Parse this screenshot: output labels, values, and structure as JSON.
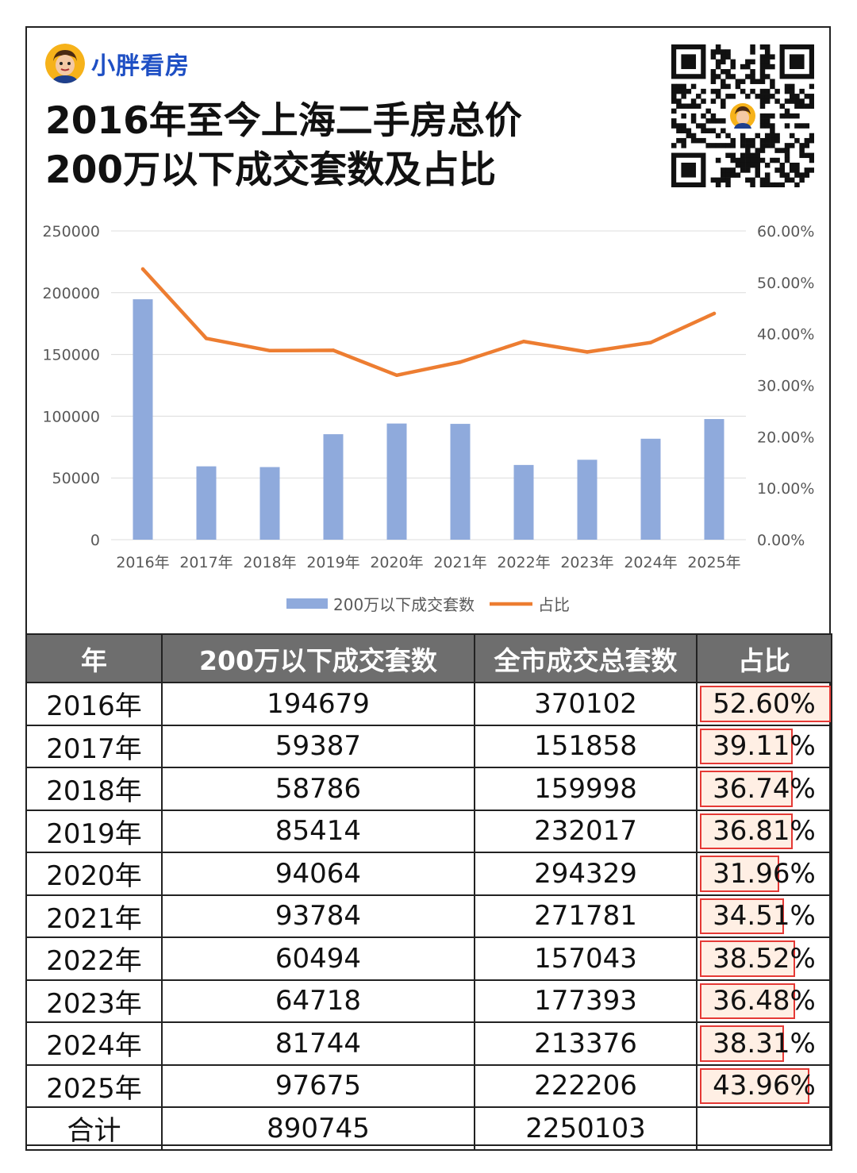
{
  "brand": {
    "name": "小胖看房"
  },
  "title": {
    "line1": "2016年至今上海二手房总价",
    "line2": "200万以下成交套数及占比"
  },
  "chart_data": {
    "type": "bar",
    "categories": [
      "2016年",
      "2017年",
      "2018年",
      "2019年",
      "2020年",
      "2021年",
      "2022年",
      "2023年",
      "2024年",
      "2025年"
    ],
    "series": [
      {
        "name": "200万以下成交套数",
        "type": "bar",
        "axis": "left",
        "color": "#8faadc",
        "values": [
          194679,
          59387,
          58786,
          85414,
          94064,
          93784,
          60494,
          64718,
          81744,
          97675
        ]
      },
      {
        "name": "占比",
        "type": "line",
        "axis": "right",
        "color": "#ed7d31",
        "values": [
          52.6,
          39.11,
          36.74,
          36.81,
          31.96,
          34.51,
          38.52,
          36.48,
          38.31,
          43.96
        ]
      }
    ],
    "y_left": {
      "min": 0,
      "max": 250000,
      "ticks": [
        "250000",
        "200000",
        "150000",
        "100000",
        "50000",
        "0"
      ]
    },
    "y_right": {
      "min": 0,
      "max": 60,
      "ticks": [
        "60.00%",
        "50.00%",
        "40.00%",
        "30.00%",
        "20.00%",
        "10.00%",
        "0.00%"
      ]
    },
    "legend_position": "bottom",
    "grid": true
  },
  "table": {
    "headers": [
      "年",
      "200万以下成交套数",
      "全市成交总套数",
      "占比"
    ],
    "rows": [
      [
        "2016年",
        "194679",
        "370102",
        "52.60%"
      ],
      [
        "2017年",
        "59387",
        "151858",
        "39.11%"
      ],
      [
        "2018年",
        "58786",
        "159998",
        "36.74%"
      ],
      [
        "2019年",
        "85414",
        "232017",
        "36.81%"
      ],
      [
        "2020年",
        "94064",
        "294329",
        "31.96%"
      ],
      [
        "2021年",
        "93784",
        "271781",
        "34.51%"
      ],
      [
        "2022年",
        "60494",
        "157043",
        "38.52%"
      ],
      [
        "2023年",
        "64718",
        "177393",
        "36.48%"
      ],
      [
        "2024年",
        "81744",
        "213376",
        "38.31%"
      ],
      [
        "2025年",
        "97675",
        "222206",
        "43.96%"
      ]
    ],
    "total": [
      "合计",
      "890745",
      "2250103",
      ""
    ]
  },
  "colors": {
    "bar": "#8faadc",
    "line": "#ed7d31",
    "header_bg": "#6e6e6e",
    "highlight": "#e53935",
    "brand": "#1e4fc4"
  },
  "icons": {
    "avatar": "cartoon-avatar-icon",
    "qr": "qr-code-icon"
  }
}
